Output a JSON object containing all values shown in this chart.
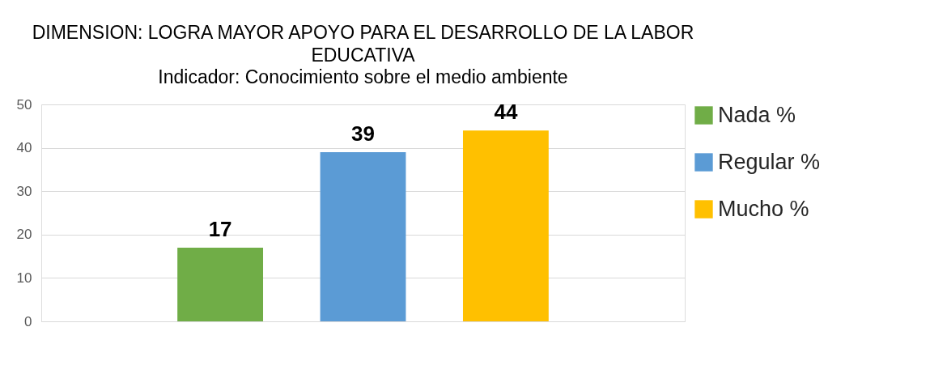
{
  "chart_data": {
    "type": "bar",
    "title": "DIMENSION: LOGRA MAYOR APOYO PARA EL DESARROLLO DE LA LABOR EDUCATIVA",
    "subtitle": "Indicador: Conocimiento sobre el medio ambiente",
    "categories": [
      null
    ],
    "series": [
      {
        "name": "Nada %",
        "color": "#70ad47",
        "values": [
          17
        ]
      },
      {
        "name": "Regular %",
        "color": "#5b9bd5",
        "values": [
          39
        ]
      },
      {
        "name": "Mucho %",
        "color": "#ffc000",
        "values": [
          44
        ]
      }
    ],
    "ylim": [
      0,
      50
    ],
    "yticks": [
      0,
      10,
      20,
      30,
      40,
      50
    ],
    "grid": "y",
    "legend": "right",
    "data_labels": true
  }
}
